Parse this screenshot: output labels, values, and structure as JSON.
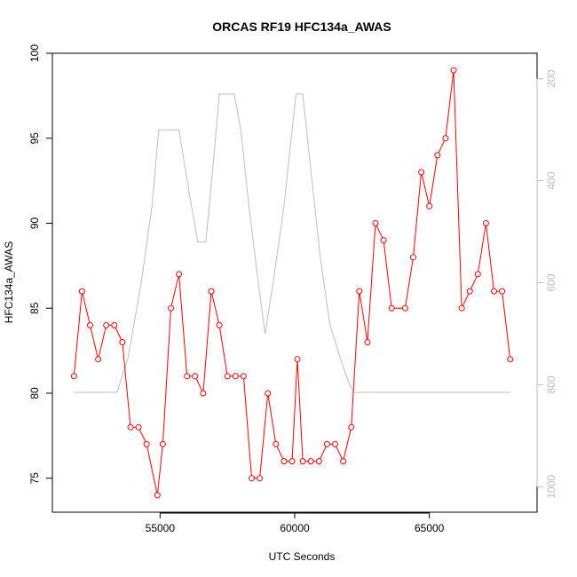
{
  "colors": {
    "series": "#ff0000",
    "altitude": "#bebebe",
    "axis": "#000000",
    "right_axis": "#bdbdbd"
  },
  "chart_data": {
    "type": "line",
    "title": "ORCAS RF19 HFC134a_AWAS",
    "xlabel": "UTC Seconds",
    "ylabel": "HFC134a_AWAS",
    "xlim": [
      51000,
      69000
    ],
    "ylim": [
      73,
      100
    ],
    "right_ylim": [
      1050,
      150
    ],
    "x_ticks": [
      55000,
      60000,
      65000
    ],
    "y_ticks": [
      75,
      80,
      85,
      90,
      95,
      100
    ],
    "right_ticks": [
      200,
      400,
      600,
      800,
      1000
    ],
    "series": [
      {
        "x": [
          51800,
          52100,
          52400,
          52700,
          53000,
          53300,
          53600,
          53900,
          54200,
          54500,
          54900,
          55100,
          55400,
          55700,
          56000,
          56300,
          56600,
          56900,
          57200,
          57500,
          57800,
          58100,
          58400,
          58700,
          59000,
          59300,
          59600,
          59900,
          60100,
          60300,
          60600,
          60900,
          61200,
          61500,
          61800,
          62100,
          62400,
          62700,
          63000,
          63300,
          63600,
          64100,
          64400,
          64700,
          65000,
          65300,
          65600,
          65900,
          66200,
          66500,
          66800,
          67100,
          67400,
          67700,
          68000
        ],
        "values": [
          81,
          86,
          84,
          82,
          84,
          84,
          83,
          78,
          78,
          77,
          74,
          77,
          85,
          87,
          81,
          81,
          80,
          86,
          84,
          81,
          81,
          81,
          75,
          75,
          80,
          77,
          76,
          76,
          82,
          76,
          76,
          76,
          77,
          77,
          76,
          78,
          86,
          83,
          90,
          89,
          85,
          85,
          88,
          93,
          91,
          94,
          95,
          99,
          85,
          86,
          87,
          90,
          86,
          86,
          82
        ]
      },
      {
        "x": [
          51800,
          52700,
          53400,
          53800,
          54300,
          54700,
          54950,
          55700,
          56100,
          56400,
          56700,
          56950,
          57200,
          57300,
          57750,
          58000,
          58300,
          58650,
          58900,
          59200,
          59600,
          59900,
          60050,
          60300,
          60600,
          60950,
          61300,
          61700,
          62000,
          62200,
          64000,
          66000,
          68000
        ],
        "values": [
          815,
          815,
          815,
          750,
          600,
          450,
          300,
          300,
          430,
          520,
          520,
          380,
          230,
          230,
          230,
          300,
          450,
          600,
          700,
          600,
          450,
          300,
          230,
          230,
          380,
          550,
          680,
          750,
          795,
          815,
          815,
          815,
          815
        ]
      }
    ]
  }
}
